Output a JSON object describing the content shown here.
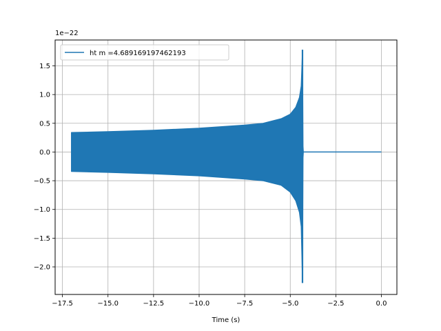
{
  "chart_data": {
    "type": "line",
    "title": "",
    "xlabel": "Time (s)",
    "ylabel": "",
    "offset_label": "1e−22",
    "xlim": [
      -17.9,
      0.85
    ],
    "ylim": [
      -2.48,
      1.95
    ],
    "x_ticks": [
      -17.5,
      -15.0,
      -12.5,
      -10.0,
      -7.5,
      -5.0,
      -2.5,
      0.0
    ],
    "x_tick_labels": [
      "−17.5",
      "−15.0",
      "−12.5",
      "−10.0",
      "−7.5",
      "−5.0",
      "−2.5",
      "0.0"
    ],
    "y_ticks": [
      -2.0,
      -1.5,
      -1.0,
      -0.5,
      0.0,
      0.5,
      1.0,
      1.5
    ],
    "y_tick_labels": [
      "−2.0",
      "−1.5",
      "−1.0",
      "−0.5",
      "0.0",
      "0.5",
      "1.0",
      "1.5"
    ],
    "grid": true,
    "legend": "top-left",
    "series": [
      {
        "name": "ht m =4.689169197462193",
        "color": "#1f77b4",
        "envelope_upper": [
          [
            -17.0,
            0.34
          ],
          [
            -15.0,
            0.355
          ],
          [
            -12.5,
            0.38
          ],
          [
            -10.0,
            0.415
          ],
          [
            -7.5,
            0.47
          ],
          [
            -6.5,
            0.5
          ],
          [
            -5.5,
            0.58
          ],
          [
            -5.0,
            0.66
          ],
          [
            -4.7,
            0.78
          ],
          [
            -4.5,
            0.95
          ],
          [
            -4.4,
            1.15
          ],
          [
            -4.33,
            1.78
          ],
          [
            -4.3,
            0.1
          ],
          [
            -4.28,
            0.0
          ]
        ],
        "envelope_lower": [
          [
            -17.0,
            -0.34
          ],
          [
            -15.0,
            -0.355
          ],
          [
            -12.5,
            -0.38
          ],
          [
            -10.0,
            -0.415
          ],
          [
            -7.5,
            -0.47
          ],
          [
            -6.5,
            -0.5
          ],
          [
            -5.5,
            -0.58
          ],
          [
            -5.0,
            -0.7
          ],
          [
            -4.7,
            -0.85
          ],
          [
            -4.5,
            -1.05
          ],
          [
            -4.4,
            -1.3
          ],
          [
            -4.33,
            -2.28
          ],
          [
            -4.3,
            -0.1
          ],
          [
            -4.28,
            0.0
          ]
        ],
        "tail": [
          [
            -4.28,
            0.0
          ],
          [
            0.0,
            0.0
          ]
        ]
      }
    ]
  }
}
